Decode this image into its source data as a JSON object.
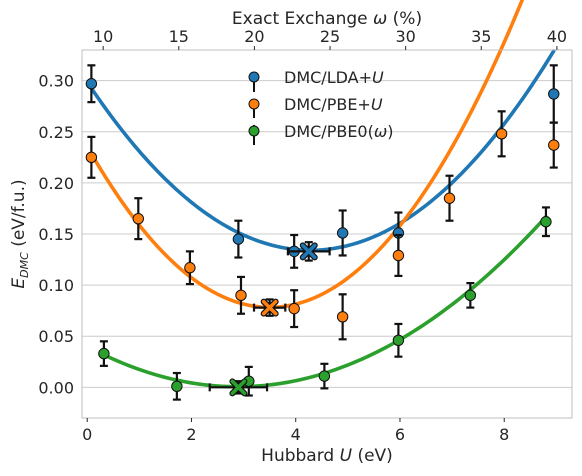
{
  "chart_data": {
    "type": "scatter",
    "xlabel_prefix": "Hubbard ",
    "xlabel_var": "U",
    "xlabel_suffix": " (eV)",
    "ylabel_main": "E",
    "ylabel_sub": "DMC",
    "ylabel_rest": " (eV/f.u.)",
    "top_xlabel_prefix": "Exact Exchange ",
    "top_xlabel_var": "ω",
    "top_xlabel_suffix": " (%)",
    "xlim": [
      -0.1,
      9.3
    ],
    "ylim": [
      -0.03,
      0.33
    ],
    "top_xlim": [
      8.6,
      41.0
    ],
    "x_ticks": [
      "0",
      "2",
      "4",
      "6",
      "8"
    ],
    "y_ticks": [
      "0.00",
      "0.05",
      "0.10",
      "0.15",
      "0.20",
      "0.25",
      "0.30"
    ],
    "top_ticks": [
      "10",
      "15",
      "20",
      "25",
      "30",
      "35",
      "40"
    ],
    "grid": "horizontal",
    "legend_position": "upper-center",
    "series": [
      {
        "name_prefix": "DMC/LDA+",
        "name_var": "U",
        "name_suffix": "",
        "color": "#1f77b4",
        "points": [
          {
            "x": 0.08,
            "y": 0.297,
            "err": 0.018
          },
          {
            "x": 2.9,
            "y": 0.145,
            "err": 0.018
          },
          {
            "x": 3.97,
            "y": 0.133,
            "err": 0.016
          },
          {
            "x": 4.9,
            "y": 0.151,
            "err": 0.022
          },
          {
            "x": 5.97,
            "y": 0.151,
            "err": 0.02
          },
          {
            "x": 8.95,
            "y": 0.287,
            "err": 0.028
          }
        ],
        "fit": [
          0.2987,
          -0.0768,
          0.00896
        ],
        "minimum": {
          "x": 4.25,
          "y": 0.133,
          "xerr": 0.4,
          "yerr": 0.009
        }
      },
      {
        "name_prefix": "DMC/PBE+",
        "name_var": "U",
        "name_suffix": "",
        "color": "#ff7f0e",
        "points": [
          {
            "x": 0.08,
            "y": 0.225,
            "err": 0.02
          },
          {
            "x": 0.98,
            "y": 0.165,
            "err": 0.02
          },
          {
            "x": 1.97,
            "y": 0.117,
            "err": 0.016
          },
          {
            "x": 2.95,
            "y": 0.09,
            "err": 0.018
          },
          {
            "x": 3.97,
            "y": 0.077,
            "err": 0.018
          },
          {
            "x": 4.9,
            "y": 0.069,
            "err": 0.022
          },
          {
            "x": 5.97,
            "y": 0.129,
            "err": 0.02
          },
          {
            "x": 6.95,
            "y": 0.185,
            "err": 0.022
          },
          {
            "x": 7.95,
            "y": 0.248,
            "err": 0.022
          },
          {
            "x": 8.95,
            "y": 0.237,
            "err": 0.022
          }
        ],
        "fit": [
          0.2357,
          -0.0899,
          0.01283
        ],
        "minimum": {
          "x": 3.5,
          "y": 0.078,
          "xerr": 0.3,
          "yerr": 0.008
        }
      },
      {
        "name_prefix": "DMC/PBE0(",
        "name_var": "ω",
        "name_suffix": ")",
        "color": "#2ca02c",
        "points": [
          {
            "x": 0.32,
            "y": 0.033,
            "err": 0.012
          },
          {
            "x": 1.72,
            "y": 0.001,
            "err": 0.013
          },
          {
            "x": 3.1,
            "y": 0.006,
            "err": 0.014
          },
          {
            "x": 4.55,
            "y": 0.011,
            "err": 0.012
          },
          {
            "x": 5.97,
            "y": 0.046,
            "err": 0.016
          },
          {
            "x": 7.35,
            "y": 0.09,
            "err": 0.012
          },
          {
            "x": 8.8,
            "y": 0.162,
            "err": 0.014
          }
        ],
        "fit": [
          0.0401,
          -0.0274,
          0.00475
        ],
        "minimum": {
          "x": 2.9,
          "y": 0.0,
          "xerr": 0.55,
          "yerr": 0.006
        }
      }
    ]
  }
}
